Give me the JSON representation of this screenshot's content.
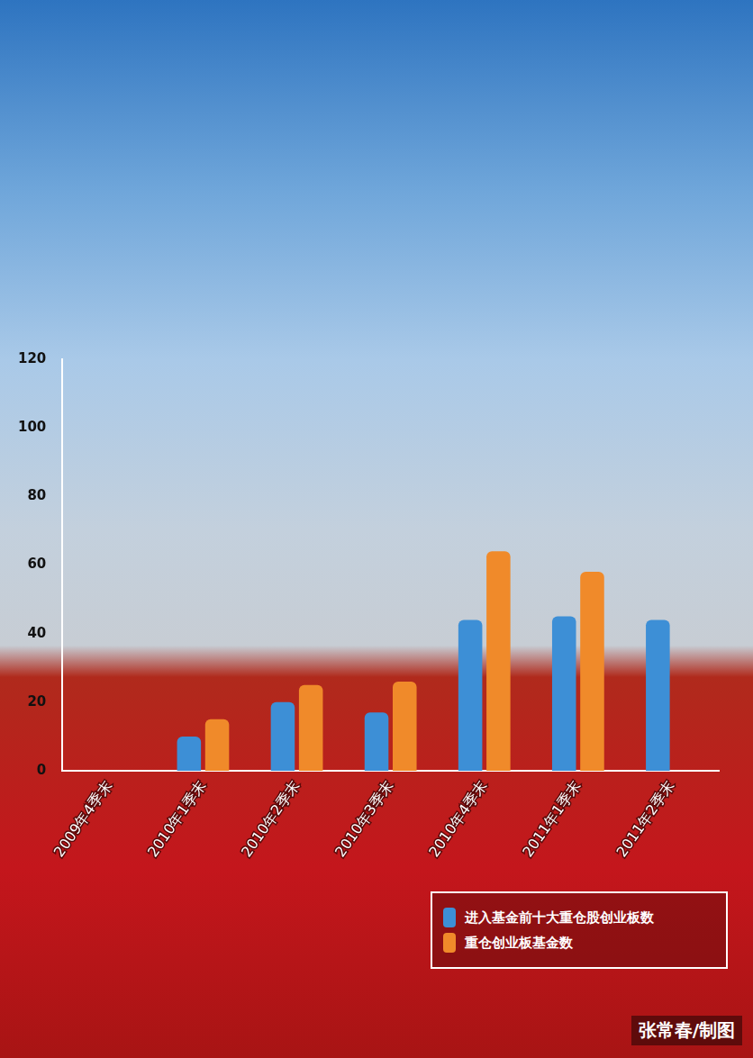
{
  "chart_data": {
    "type": "bar",
    "categories": [
      "2009年4季末",
      "2010年1季末",
      "2010年2季末",
      "2010年3季末",
      "2010年4季末",
      "2011年1季末",
      "2011年2季末"
    ],
    "series": [
      {
        "name": "进入基金前十大重仓股创业板数",
        "color": "#3d8fd6",
        "values": [
          null,
          10,
          20,
          17,
          44,
          45,
          44
        ]
      },
      {
        "name": "重仓创业板基金数",
        "color": "#f08a2a",
        "values": [
          null,
          15,
          25,
          26,
          64,
          58,
          null
        ]
      }
    ],
    "ylim": [
      0,
      120
    ],
    "yticks": [
      0,
      20,
      40,
      60,
      80,
      100,
      120
    ],
    "grid": false,
    "legend": "lower right",
    "credit": "张常春/制图"
  }
}
